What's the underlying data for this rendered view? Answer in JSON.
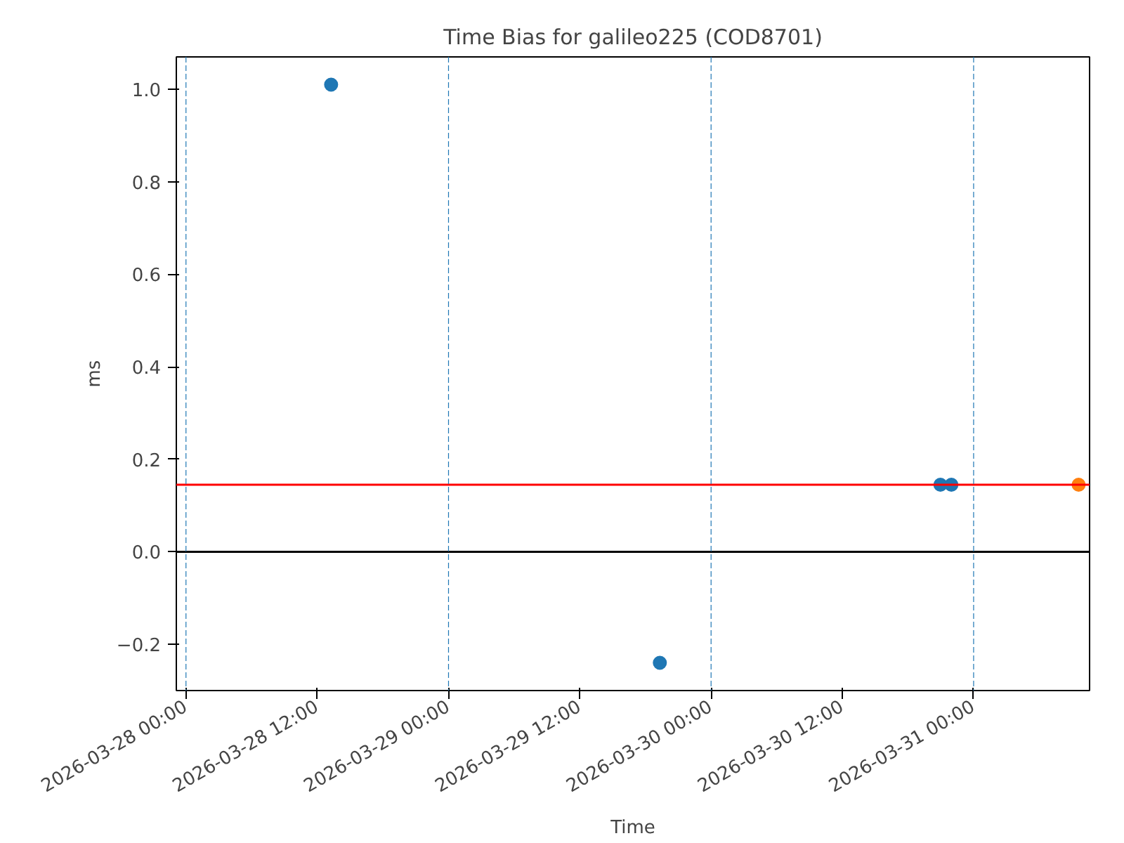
{
  "chart_data": {
    "type": "scatter",
    "title": "Time Bias for galileo225 (COD8701)",
    "xlabel": "Time",
    "ylabel": "ms",
    "series": [
      {
        "color": "#1f77b4",
        "x": [
          "2026-03-28T13:16",
          "2026-03-29T19:19",
          "2026-03-30T20:58",
          "2026-03-30T21:58"
        ],
        "values": [
          1.01,
          -0.24,
          0.145,
          0.145
        ]
      },
      {
        "color": "#ff7f0e",
        "x": [
          "2026-03-31T09:36"
        ],
        "values": [
          0.145
        ]
      }
    ],
    "marker": "circle",
    "grid": false,
    "xlim": [
      "2026-03-27T23:07",
      "2026-03-31T10:36"
    ],
    "xticks": [
      {
        "value": "2026-03-28T00:00",
        "label": "2026-03-28 00:00"
      },
      {
        "value": "2026-03-28T12:00",
        "label": "2026-03-28 12:00"
      },
      {
        "value": "2026-03-29T00:00",
        "label": "2026-03-29 00:00"
      },
      {
        "value": "2026-03-29T12:00",
        "label": "2026-03-29 12:00"
      },
      {
        "value": "2026-03-30T00:00",
        "label": "2026-03-30 00:00"
      },
      {
        "value": "2026-03-30T12:00",
        "label": "2026-03-30 12:00"
      },
      {
        "value": "2026-03-31T00:00",
        "label": "2026-03-31 00:00"
      }
    ],
    "ylim": [
      -0.3,
      1.07
    ],
    "yticks": [
      {
        "value": -0.2,
        "label": "−0.2"
      },
      {
        "value": 0,
        "label": "0.0"
      },
      {
        "value": 0.2,
        "label": "0.2"
      },
      {
        "value": 0.4,
        "label": "0.4"
      },
      {
        "value": 0.6,
        "label": "0.6"
      },
      {
        "value": 0.8,
        "label": "0.8"
      },
      {
        "value": 1.0,
        "label": "1.0"
      }
    ],
    "ref_lines": [
      {
        "axis": "y",
        "value": 0.145,
        "color": "#ff0000",
        "line_style": "solid"
      },
      {
        "axis": "y",
        "value": 0,
        "color": "#000000",
        "line_style": "solid"
      },
      {
        "axis": "x",
        "value": "2026-03-28T00:00",
        "color": "#1f77b4",
        "line_style": "dashed"
      },
      {
        "axis": "x",
        "value": "2026-03-29T00:00",
        "color": "#1f77b4",
        "line_style": "dashed"
      },
      {
        "axis": "x",
        "value": "2026-03-30T00:00",
        "color": "#1f77b4",
        "line_style": "dashed"
      },
      {
        "axis": "x",
        "value": "2026-03-31T00:00",
        "color": "#1f77b4",
        "line_style": "dashed"
      }
    ]
  }
}
